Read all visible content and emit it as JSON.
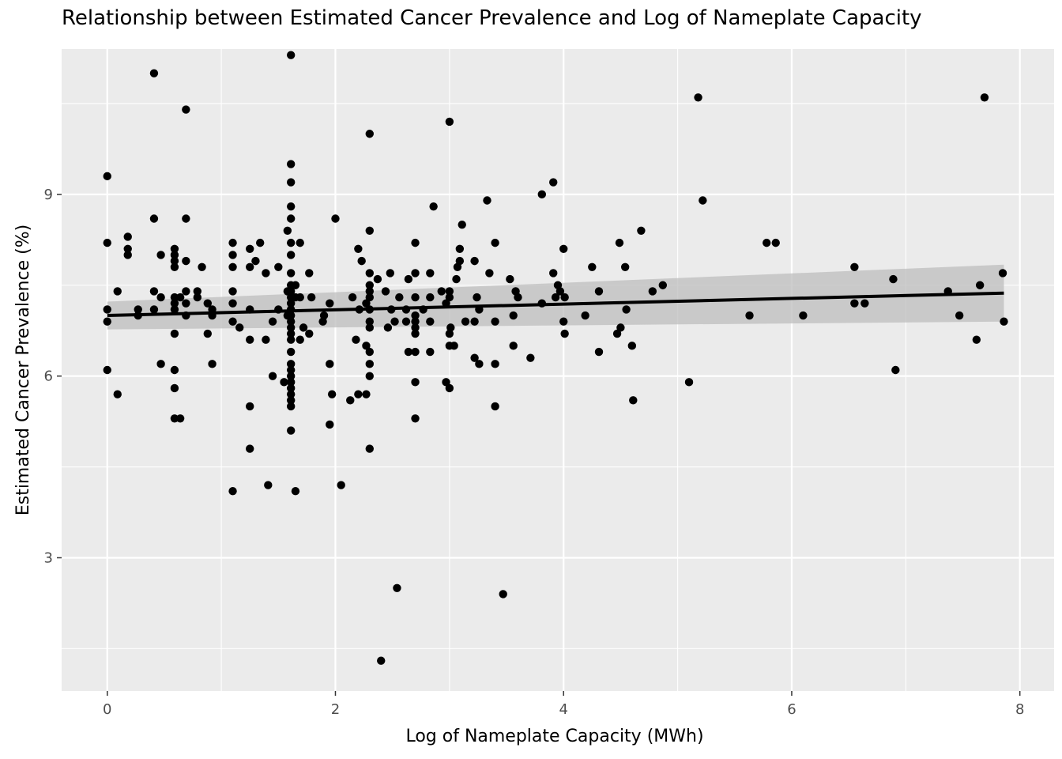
{
  "chart_data": {
    "type": "scatter",
    "title": "Relationship between Estimated Cancer Prevalence and Log of Nameplate Capacity",
    "xlabel": "Log of Nameplate Capacity (MWh)",
    "ylabel": "Estimated Cancer Prevalence (%)",
    "xlim": [
      -0.4,
      8.3
    ],
    "ylim": [
      0.8,
      11.4
    ],
    "x_ticks": [
      0,
      2,
      4,
      6,
      8
    ],
    "y_ticks": [
      3,
      6,
      9
    ],
    "grid": true,
    "background": "#EBEBEB",
    "point_color": "#000000",
    "trend_line": {
      "type": "linear fit",
      "x": [
        0,
        7.86
      ],
      "y": [
        7.0,
        7.37
      ],
      "ci_lower": [
        6.77,
        6.9
      ],
      "ci_upper": [
        7.23,
        7.84
      ],
      "color": "#000000",
      "band_color": "#BEBEBE"
    },
    "points": [
      [
        0,
        9.3
      ],
      [
        0,
        8.2
      ],
      [
        0,
        7.1
      ],
      [
        0,
        6.9
      ],
      [
        0,
        6.1
      ],
      [
        0.09,
        7.4
      ],
      [
        0.09,
        5.7
      ],
      [
        0.18,
        8.3
      ],
      [
        0.18,
        8.1
      ],
      [
        0.18,
        8.0
      ],
      [
        0.27,
        7.1
      ],
      [
        0.27,
        7.0
      ],
      [
        0.41,
        11.0
      ],
      [
        0.41,
        8.6
      ],
      [
        0.41,
        7.4
      ],
      [
        0.41,
        7.1
      ],
      [
        0.47,
        8.0
      ],
      [
        0.47,
        7.3
      ],
      [
        0.47,
        6.2
      ],
      [
        0.59,
        8.1
      ],
      [
        0.59,
        8.0
      ],
      [
        0.59,
        7.9
      ],
      [
        0.59,
        7.8
      ],
      [
        0.59,
        7.3
      ],
      [
        0.59,
        7.2
      ],
      [
        0.59,
        7.1
      ],
      [
        0.59,
        6.7
      ],
      [
        0.59,
        6.1
      ],
      [
        0.59,
        5.8
      ],
      [
        0.59,
        5.3
      ],
      [
        0.64,
        7.3
      ],
      [
        0.64,
        5.3
      ],
      [
        0.69,
        10.4
      ],
      [
        0.69,
        8.6
      ],
      [
        0.69,
        7.9
      ],
      [
        0.69,
        7.4
      ],
      [
        0.69,
        7.2
      ],
      [
        0.69,
        7.0
      ],
      [
        0.79,
        7.4
      ],
      [
        0.79,
        7.3
      ],
      [
        0.83,
        7.8
      ],
      [
        0.88,
        7.2
      ],
      [
        0.88,
        6.7
      ],
      [
        0.92,
        7.1
      ],
      [
        0.92,
        7.0
      ],
      [
        0.92,
        6.2
      ],
      [
        1.1,
        8.2
      ],
      [
        1.1,
        8.0
      ],
      [
        1.1,
        7.8
      ],
      [
        1.1,
        7.4
      ],
      [
        1.1,
        7.2
      ],
      [
        1.1,
        6.9
      ],
      [
        1.1,
        4.1
      ],
      [
        1.16,
        6.8
      ],
      [
        1.25,
        8.1
      ],
      [
        1.25,
        7.8
      ],
      [
        1.25,
        7.1
      ],
      [
        1.25,
        6.6
      ],
      [
        1.25,
        5.5
      ],
      [
        1.25,
        4.8
      ],
      [
        1.3,
        7.9
      ],
      [
        1.34,
        8.2
      ],
      [
        1.39,
        7.7
      ],
      [
        1.39,
        6.6
      ],
      [
        1.41,
        4.2
      ],
      [
        1.45,
        6.9
      ],
      [
        1.45,
        6.0
      ],
      [
        1.5,
        7.8
      ],
      [
        1.5,
        7.1
      ],
      [
        1.55,
        5.9
      ],
      [
        1.58,
        8.4
      ],
      [
        1.58,
        7.4
      ],
      [
        1.58,
        7.0
      ],
      [
        1.61,
        11.3
      ],
      [
        1.61,
        9.5
      ],
      [
        1.61,
        9.2
      ],
      [
        1.61,
        8.8
      ],
      [
        1.61,
        8.6
      ],
      [
        1.61,
        8.2
      ],
      [
        1.61,
        8.0
      ],
      [
        1.61,
        7.7
      ],
      [
        1.61,
        7.5
      ],
      [
        1.61,
        7.4
      ],
      [
        1.61,
        7.3
      ],
      [
        1.61,
        7.2
      ],
      [
        1.61,
        7.1
      ],
      [
        1.61,
        7.0
      ],
      [
        1.61,
        6.9
      ],
      [
        1.61,
        6.8
      ],
      [
        1.61,
        6.7
      ],
      [
        1.61,
        6.6
      ],
      [
        1.61,
        6.4
      ],
      [
        1.61,
        6.2
      ],
      [
        1.61,
        6.1
      ],
      [
        1.61,
        6.0
      ],
      [
        1.61,
        5.9
      ],
      [
        1.61,
        5.8
      ],
      [
        1.61,
        5.7
      ],
      [
        1.61,
        5.6
      ],
      [
        1.61,
        5.5
      ],
      [
        1.61,
        5.1
      ],
      [
        1.65,
        7.5
      ],
      [
        1.65,
        7.3
      ],
      [
        1.65,
        4.1
      ],
      [
        1.69,
        8.2
      ],
      [
        1.69,
        7.3
      ],
      [
        1.69,
        6.6
      ],
      [
        1.72,
        6.8
      ],
      [
        1.77,
        7.7
      ],
      [
        1.77,
        6.7
      ],
      [
        1.79,
        7.3
      ],
      [
        1.89,
        6.9
      ],
      [
        1.9,
        7.0
      ],
      [
        1.95,
        7.2
      ],
      [
        1.95,
        6.2
      ],
      [
        1.95,
        5.2
      ],
      [
        1.97,
        5.7
      ],
      [
        2.0,
        8.6
      ],
      [
        2.05,
        4.2
      ],
      [
        2.13,
        5.6
      ],
      [
        2.15,
        7.3
      ],
      [
        2.18,
        6.6
      ],
      [
        2.2,
        8.1
      ],
      [
        2.2,
        5.7
      ],
      [
        2.21,
        7.1
      ],
      [
        2.23,
        7.9
      ],
      [
        2.27,
        7.2
      ],
      [
        2.27,
        6.5
      ],
      [
        2.27,
        5.7
      ],
      [
        2.3,
        10.0
      ],
      [
        2.3,
        8.4
      ],
      [
        2.3,
        7.7
      ],
      [
        2.3,
        7.5
      ],
      [
        2.3,
        7.4
      ],
      [
        2.3,
        7.3
      ],
      [
        2.3,
        7.1
      ],
      [
        2.3,
        6.9
      ],
      [
        2.3,
        6.8
      ],
      [
        2.3,
        6.4
      ],
      [
        2.3,
        6.2
      ],
      [
        2.3,
        6.0
      ],
      [
        2.3,
        4.8
      ],
      [
        2.37,
        7.6
      ],
      [
        2.4,
        1.3
      ],
      [
        2.44,
        7.4
      ],
      [
        2.46,
        6.8
      ],
      [
        2.48,
        7.7
      ],
      [
        2.49,
        7.1
      ],
      [
        2.52,
        6.9
      ],
      [
        2.54,
        2.5
      ],
      [
        2.56,
        7.3
      ],
      [
        2.62,
        7.1
      ],
      [
        2.62,
        6.9
      ],
      [
        2.64,
        7.6
      ],
      [
        2.64,
        6.4
      ],
      [
        2.7,
        8.2
      ],
      [
        2.7,
        7.7
      ],
      [
        2.7,
        7.3
      ],
      [
        2.7,
        7.0
      ],
      [
        2.7,
        6.9
      ],
      [
        2.7,
        6.8
      ],
      [
        2.7,
        6.7
      ],
      [
        2.7,
        6.4
      ],
      [
        2.7,
        5.9
      ],
      [
        2.7,
        5.3
      ],
      [
        2.77,
        7.1
      ],
      [
        2.83,
        7.7
      ],
      [
        2.83,
        7.3
      ],
      [
        2.83,
        6.9
      ],
      [
        2.83,
        6.4
      ],
      [
        2.86,
        8.8
      ],
      [
        2.93,
        7.4
      ],
      [
        2.97,
        7.2
      ],
      [
        2.97,
        5.9
      ],
      [
        3.0,
        10.2
      ],
      [
        3.0,
        7.4
      ],
      [
        3.0,
        7.3
      ],
      [
        3.0,
        6.7
      ],
      [
        3.0,
        6.5
      ],
      [
        3.0,
        5.8
      ],
      [
        3.01,
        6.8
      ],
      [
        3.04,
        6.5
      ],
      [
        3.06,
        7.6
      ],
      [
        3.07,
        7.8
      ],
      [
        3.09,
        8.1
      ],
      [
        3.09,
        7.9
      ],
      [
        3.11,
        8.5
      ],
      [
        3.14,
        6.9
      ],
      [
        3.22,
        7.9
      ],
      [
        3.22,
        6.9
      ],
      [
        3.22,
        6.3
      ],
      [
        3.24,
        7.3
      ],
      [
        3.26,
        7.1
      ],
      [
        3.26,
        6.2
      ],
      [
        3.33,
        8.9
      ],
      [
        3.35,
        7.7
      ],
      [
        3.4,
        8.2
      ],
      [
        3.4,
        6.9
      ],
      [
        3.4,
        6.2
      ],
      [
        3.4,
        5.5
      ],
      [
        3.47,
        2.4
      ],
      [
        3.53,
        7.6
      ],
      [
        3.56,
        7.0
      ],
      [
        3.56,
        6.5
      ],
      [
        3.58,
        7.4
      ],
      [
        3.6,
        7.3
      ],
      [
        3.71,
        6.3
      ],
      [
        3.81,
        9.0
      ],
      [
        3.81,
        7.2
      ],
      [
        3.91,
        9.2
      ],
      [
        3.91,
        7.7
      ],
      [
        3.93,
        7.3
      ],
      [
        3.95,
        7.5
      ],
      [
        3.97,
        7.4
      ],
      [
        4.0,
        8.1
      ],
      [
        4.0,
        6.9
      ],
      [
        4.01,
        7.3
      ],
      [
        4.01,
        6.7
      ],
      [
        4.19,
        7.0
      ],
      [
        4.25,
        7.8
      ],
      [
        4.31,
        7.4
      ],
      [
        4.31,
        6.4
      ],
      [
        4.47,
        6.7
      ],
      [
        4.49,
        8.2
      ],
      [
        4.5,
        6.8
      ],
      [
        4.54,
        7.8
      ],
      [
        4.55,
        7.1
      ],
      [
        4.6,
        6.5
      ],
      [
        4.61,
        5.6
      ],
      [
        4.68,
        8.4
      ],
      [
        4.78,
        7.4
      ],
      [
        4.87,
        7.5
      ],
      [
        5.1,
        5.9
      ],
      [
        5.18,
        10.6
      ],
      [
        5.22,
        8.9
      ],
      [
        5.63,
        7.0
      ],
      [
        5.78,
        8.2
      ],
      [
        5.86,
        8.2
      ],
      [
        6.1,
        7.0
      ],
      [
        6.55,
        7.8
      ],
      [
        6.55,
        7.2
      ],
      [
        6.64,
        7.2
      ],
      [
        6.89,
        7.6
      ],
      [
        6.91,
        6.1
      ],
      [
        7.37,
        7.4
      ],
      [
        7.47,
        7.0
      ],
      [
        7.62,
        6.6
      ],
      [
        7.65,
        7.5
      ],
      [
        7.69,
        10.6
      ],
      [
        7.85,
        7.7
      ],
      [
        7.86,
        6.9
      ]
    ]
  }
}
